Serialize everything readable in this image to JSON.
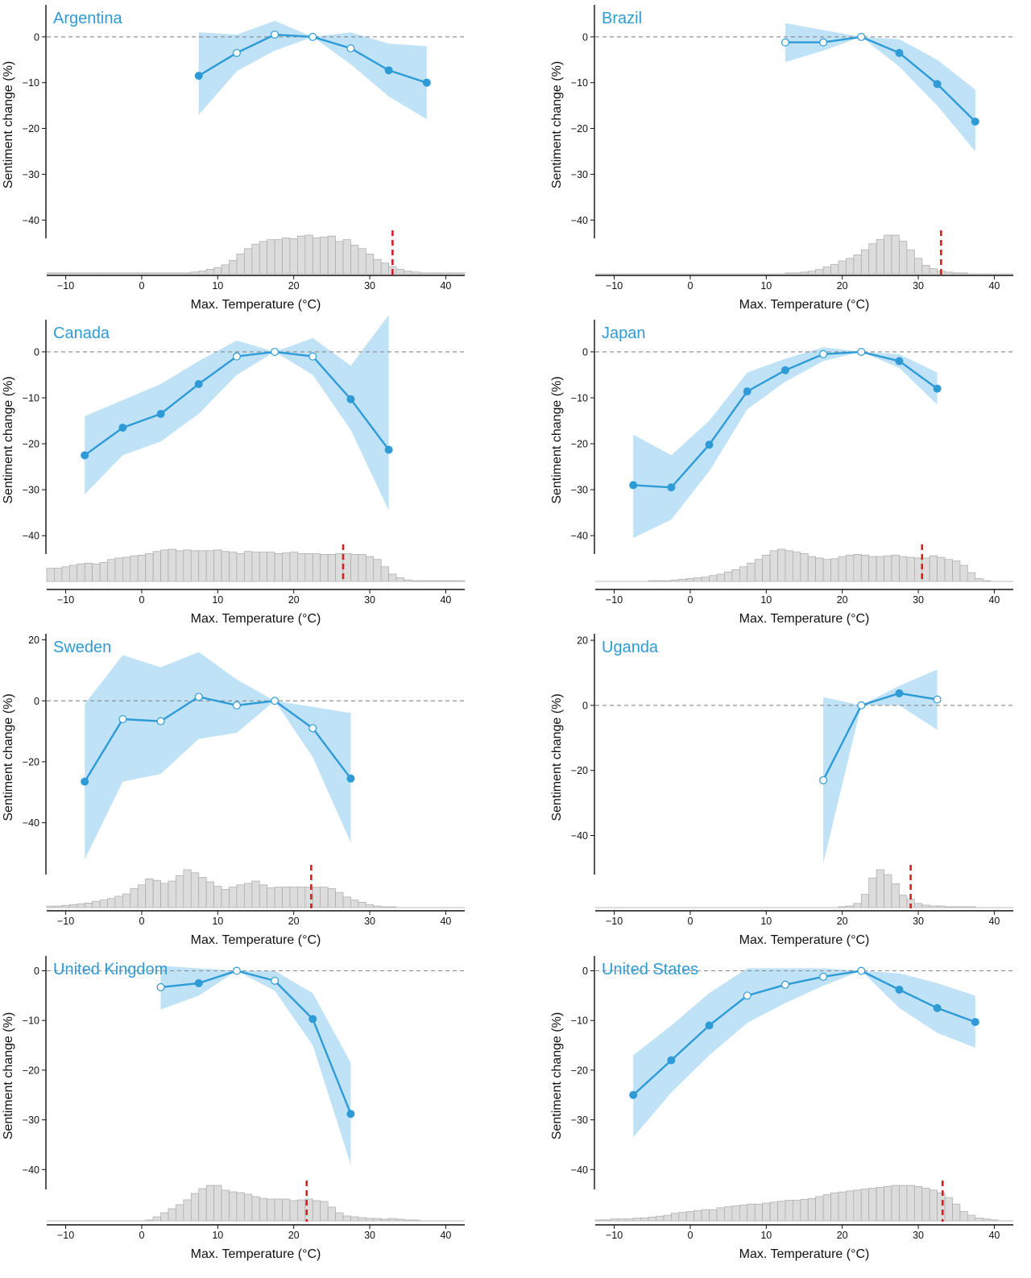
{
  "colors": {
    "line": "#2e9bd6",
    "band": "#bfe2f6",
    "hist_fill": "#dcdcdc",
    "hist_stroke": "#a9a9a9",
    "threshold": "#d42020",
    "zero_line": "#888888",
    "axis": "#111111",
    "title": "#2e9bd6"
  },
  "x_axis": {
    "label": "Max. Temperature (°C)",
    "ticks": [
      -10,
      0,
      10,
      20,
      30,
      40
    ],
    "tick_labels": [
      "−10",
      "0",
      "10",
      "20",
      "30",
      "40"
    ],
    "range": [
      -12.5,
      42.5
    ]
  },
  "chart_data": [
    {
      "type": "line",
      "title": "Argentina",
      "xlabel": "Max. Temperature (°C)",
      "ylabel": "Sentiment change (%)",
      "ylim": [
        -44,
        7
      ],
      "y_ticks": [
        0,
        -10,
        -20,
        -30,
        -40
      ],
      "y_tick_labels": [
        "0",
        "−10",
        "−20",
        "−30",
        "−40"
      ],
      "x": [
        7.5,
        12.5,
        17.5,
        22.5,
        27.5,
        32.5,
        37.5
      ],
      "y": [
        -8.5,
        -3.5,
        0.5,
        0,
        -2.5,
        -7.3,
        -10
      ],
      "significant": [
        true,
        false,
        false,
        false,
        false,
        true,
        true
      ],
      "ci_low": [
        -17,
        -7.5,
        -3,
        0,
        -6,
        -13,
        -18
      ],
      "ci_high": [
        1,
        0.5,
        3.5,
        0,
        1,
        -1.5,
        -2
      ],
      "threshold": 33,
      "histogram": {
        "bin_start": -12.5,
        "bin_width": 1,
        "counts": [
          1,
          1,
          1,
          1,
          1,
          1,
          1,
          1,
          1,
          1,
          1,
          1,
          1,
          1,
          1,
          1,
          1,
          1,
          1,
          2,
          3,
          5,
          7,
          10,
          15,
          22,
          28,
          33,
          36,
          38,
          38,
          40,
          39,
          42,
          43,
          40,
          41,
          42,
          36,
          38,
          32,
          28,
          22,
          16,
          12,
          8,
          5,
          3,
          2,
          1,
          1,
          1,
          1,
          1,
          1
        ]
      }
    },
    {
      "type": "line",
      "title": "Brazil",
      "xlabel": "Max. Temperature (°C)",
      "ylabel": "Sentiment change (%)",
      "ylim": [
        -44,
        7
      ],
      "y_ticks": [
        0,
        -10,
        -20,
        -30,
        -40
      ],
      "y_tick_labels": [
        "0",
        "−10",
        "−20",
        "−30",
        "−40"
      ],
      "x": [
        12.5,
        17.5,
        22.5,
        27.5,
        32.5,
        37.5
      ],
      "y": [
        -1.2,
        -1.2,
        0,
        -3.5,
        -10.3,
        -18.5
      ],
      "significant": [
        false,
        false,
        false,
        true,
        true,
        true
      ],
      "ci_low": [
        -5.5,
        -3,
        0,
        -6.5,
        -15,
        -25
      ],
      "ci_high": [
        3,
        1.5,
        0,
        -0.5,
        -5,
        -11.5
      ],
      "threshold": 33,
      "histogram": {
        "bin_start": -12.5,
        "bin_width": 1,
        "counts": [
          0,
          0,
          0,
          0,
          0,
          0,
          0,
          0,
          0,
          0,
          0,
          0,
          0,
          0,
          0,
          0,
          0,
          0,
          0,
          0,
          0,
          0,
          0,
          0,
          0,
          1,
          1,
          2,
          3,
          5,
          8,
          11,
          15,
          18,
          22,
          28,
          35,
          40,
          45,
          45,
          38,
          28,
          18,
          10,
          6,
          3,
          2,
          1,
          1,
          0,
          0,
          0,
          0,
          0,
          0
        ]
      }
    },
    {
      "type": "line",
      "title": "Canada",
      "xlabel": "Max. Temperature (°C)",
      "ylabel": "Sentiment change (%)",
      "ylim": [
        -44,
        7
      ],
      "y_ticks": [
        0,
        -10,
        -20,
        -30,
        -40
      ],
      "y_tick_labels": [
        "0",
        "−10",
        "−20",
        "−30",
        "−40"
      ],
      "x": [
        -7.5,
        -2.5,
        2.5,
        7.5,
        12.5,
        17.5,
        22.5,
        27.5,
        32.5
      ],
      "y": [
        -22.5,
        -16.5,
        -13.5,
        -7,
        -1,
        0,
        -1,
        -10.3,
        -21.3
      ],
      "significant": [
        true,
        true,
        true,
        true,
        false,
        false,
        false,
        true,
        true
      ],
      "ci_low": [
        -31,
        -22.5,
        -19.5,
        -13.5,
        -5,
        0,
        -5,
        -17,
        -34.5
      ],
      "ci_high": [
        -14,
        -10.5,
        -7,
        -2,
        2.5,
        0,
        3,
        -3,
        8
      ],
      "threshold": 26.5,
      "histogram": {
        "bin_start": -12.5,
        "bin_width": 1,
        "counts": [
          18,
          18,
          20,
          22,
          24,
          25,
          24,
          26,
          30,
          32,
          33,
          35,
          36,
          38,
          41,
          43,
          44,
          42,
          43,
          42,
          42,
          42,
          43,
          41,
          40,
          38,
          41,
          40,
          40,
          40,
          38,
          39,
          40,
          38,
          38,
          38,
          37,
          37,
          38,
          38,
          37,
          37,
          34,
          30,
          20,
          10,
          5,
          2,
          1,
          1,
          1,
          1,
          1,
          1,
          1
        ]
      }
    },
    {
      "type": "line",
      "title": "Japan",
      "xlabel": "Max. Temperature (°C)",
      "ylabel": "Sentiment change (%)",
      "ylim": [
        -44,
        7
      ],
      "y_ticks": [
        0,
        -10,
        -20,
        -30,
        -40
      ],
      "y_tick_labels": [
        "0",
        "−10",
        "−20",
        "−30",
        "−40"
      ],
      "x": [
        -7.5,
        -2.5,
        2.5,
        7.5,
        12.5,
        17.5,
        22.5,
        27.5,
        32.5
      ],
      "y": [
        -29,
        -29.5,
        -20.2,
        -8.6,
        -4,
        -0.5,
        0,
        -2,
        -8
      ],
      "significant": [
        true,
        true,
        true,
        true,
        true,
        false,
        false,
        true,
        true
      ],
      "ci_low": [
        -40.5,
        -36.5,
        -26,
        -12.5,
        -6.5,
        -2,
        0,
        -3.5,
        -11.5
      ],
      "ci_high": [
        -18,
        -22.5,
        -15,
        -4.5,
        -1.5,
        1,
        0,
        -0.5,
        -4.5
      ],
      "threshold": 30.5,
      "histogram": {
        "bin_start": -12.5,
        "bin_width": 1,
        "counts": [
          0,
          0,
          0,
          0,
          0,
          0,
          0,
          1,
          1,
          1,
          2,
          3,
          4,
          5,
          6,
          8,
          10,
          13,
          16,
          20,
          25,
          30,
          36,
          42,
          44,
          42,
          40,
          38,
          34,
          32,
          30,
          31,
          34,
          36,
          37,
          36,
          34,
          34,
          35,
          36,
          34,
          33,
          32,
          32,
          35,
          33,
          30,
          28,
          22,
          12,
          4,
          1,
          0,
          0,
          0
        ]
      }
    },
    {
      "type": "line",
      "title": "Sweden",
      "xlabel": "Max. Temperature (°C)",
      "ylabel": "Sentiment change (%)",
      "ylim": [
        -57,
        22
      ],
      "y_ticks": [
        20,
        0,
        -20,
        -40
      ],
      "y_tick_labels": [
        "20",
        "0",
        "−20",
        "−40"
      ],
      "x": [
        -7.5,
        -2.5,
        2.5,
        7.5,
        12.5,
        17.5,
        22.5,
        27.5
      ],
      "y": [
        -26.5,
        -6,
        -6.7,
        1.3,
        -1.5,
        0,
        -9,
        -25.5
      ],
      "significant": [
        true,
        false,
        false,
        false,
        false,
        false,
        false,
        true
      ],
      "ci_low": [
        -52,
        -26.5,
        -24,
        -12.5,
        -10.5,
        0,
        -18.5,
        -46.5
      ],
      "ci_high": [
        -1,
        15,
        11,
        16,
        7,
        0,
        -2,
        -4
      ],
      "threshold": 22.3,
      "histogram": {
        "bin_start": -12.5,
        "bin_width": 1,
        "counts": [
          2,
          2,
          3,
          4,
          5,
          6,
          8,
          10,
          12,
          15,
          18,
          25,
          30,
          38,
          36,
          32,
          35,
          42,
          50,
          46,
          40,
          34,
          28,
          24,
          27,
          30,
          32,
          35,
          30,
          26,
          27,
          27,
          27,
          27,
          27,
          27,
          27,
          25,
          20,
          14,
          10,
          7,
          4,
          2,
          1,
          1,
          0,
          0,
          0,
          0,
          0,
          0,
          0,
          0,
          0
        ]
      }
    },
    {
      "type": "line",
      "title": "Uganda",
      "xlabel": "Max. Temperature (°C)",
      "ylabel": "Sentiment change (%)",
      "ylim": [
        -52,
        22
      ],
      "y_ticks": [
        20,
        0,
        -20,
        -40
      ],
      "y_tick_labels": [
        "20",
        "0",
        "−20",
        "−40"
      ],
      "x": [
        17.5,
        22.5,
        27.5,
        32.5
      ],
      "y": [
        -23,
        0,
        3.7,
        1.8
      ],
      "significant": [
        false,
        false,
        true,
        false
      ],
      "ci_low": [
        -48.5,
        0,
        0,
        -7.5
      ],
      "ci_high": [
        2.5,
        0,
        6,
        11
      ],
      "threshold": 29,
      "histogram": {
        "bin_start": -12.5,
        "bin_width": 1,
        "counts": [
          0,
          0,
          0,
          0,
          0,
          0,
          0,
          0,
          0,
          0,
          0,
          0,
          0,
          0,
          0,
          0,
          0,
          0,
          0,
          0,
          0,
          0,
          0,
          0,
          0,
          0,
          0,
          0,
          0,
          0,
          0,
          0,
          1,
          2,
          5,
          16,
          36,
          46,
          40,
          29,
          15,
          10,
          5,
          3,
          2,
          2,
          1,
          1,
          1,
          1,
          0,
          0,
          0,
          0,
          0
        ]
      }
    },
    {
      "type": "line",
      "title": "United Kingdom",
      "xlabel": "Max. Temperature (°C)",
      "ylabel": "Sentiment change (%)",
      "ylim": [
        -44,
        3
      ],
      "y_ticks": [
        0,
        -10,
        -20,
        -30,
        -40
      ],
      "y_tick_labels": [
        "0",
        "−10",
        "−20",
        "−30",
        "−40"
      ],
      "x": [
        2.5,
        7.5,
        12.5,
        17.5,
        22.5,
        27.5
      ],
      "y": [
        -3.3,
        -2.5,
        0,
        -2,
        -9.7,
        -28.8
      ],
      "significant": [
        false,
        true,
        false,
        false,
        true,
        true
      ],
      "ci_low": [
        -7.8,
        -5,
        0,
        -4,
        -15,
        -39
      ],
      "ci_high": [
        1,
        0.5,
        0,
        0,
        -4.5,
        -18.5
      ],
      "threshold": 21.7,
      "histogram": {
        "bin_start": -12.5,
        "bin_width": 1,
        "counts": [
          0,
          0,
          0,
          0,
          0,
          0,
          0,
          0,
          0,
          0,
          0,
          0,
          0,
          1,
          5,
          10,
          15,
          20,
          26,
          34,
          40,
          44,
          44,
          38,
          36,
          35,
          33,
          30,
          28,
          27,
          27,
          27,
          25,
          26,
          27,
          25,
          24,
          17,
          10,
          6,
          5,
          4,
          3,
          3,
          2,
          3,
          2,
          1,
          1,
          0,
          0,
          0,
          0,
          0,
          0
        ]
      }
    },
    {
      "type": "line",
      "title": "United States",
      "xlabel": "Max. Temperature (°C)",
      "ylabel": "Sentiment change (%)",
      "ylim": [
        -44,
        3
      ],
      "y_ticks": [
        0,
        -10,
        -20,
        -30,
        -40
      ],
      "y_tick_labels": [
        "0",
        "−10",
        "−20",
        "−30",
        "−40"
      ],
      "x": [
        -7.5,
        -2.5,
        2.5,
        7.5,
        12.5,
        17.5,
        22.5,
        27.5,
        32.5,
        37.5
      ],
      "y": [
        -25,
        -18,
        -11,
        -5,
        -2.8,
        -1.2,
        0,
        -3.8,
        -7.5,
        -10.3
      ],
      "significant": [
        true,
        true,
        true,
        false,
        false,
        false,
        false,
        true,
        true,
        true
      ],
      "ci_low": [
        -33.5,
        -24.5,
        -17,
        -10.5,
        -6.5,
        -3,
        0,
        -7.5,
        -12.5,
        -15.5
      ],
      "ci_high": [
        -17,
        -11,
        -4.5,
        0.5,
        0.5,
        0.5,
        0,
        -0.5,
        -2.5,
        -5
      ],
      "threshold": 33.2,
      "histogram": {
        "bin_start": -12.5,
        "bin_width": 1,
        "counts": [
          1,
          1,
          2,
          2,
          2,
          3,
          3,
          4,
          5,
          6,
          8,
          9,
          10,
          11,
          12,
          12,
          14,
          15,
          16,
          17,
          18,
          18,
          19,
          20,
          21,
          22,
          22,
          23,
          24,
          26,
          28,
          30,
          31,
          32,
          33,
          34,
          35,
          36,
          37,
          38,
          38,
          38,
          37,
          35,
          33,
          30,
          25,
          18,
          10,
          6,
          3,
          2,
          1,
          0,
          0
        ]
      }
    }
  ]
}
